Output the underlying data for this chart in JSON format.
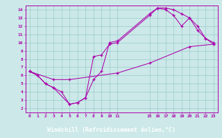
{
  "xlabel": "Windchill (Refroidissement éolien,°C)",
  "bg_color": "#cce8e8",
  "line_color": "#aa00aa",
  "grid_color": "#99cccc",
  "axis_label_bg": "#660066",
  "axis_label_color": "#ffffff",
  "xlim": [
    -0.5,
    23.5
  ],
  "ylim": [
    1.5,
    14.5
  ],
  "xticks": [
    0,
    1,
    2,
    3,
    4,
    5,
    6,
    7,
    8,
    9,
    10,
    11,
    15,
    16,
    17,
    18,
    19,
    20,
    21,
    22,
    23
  ],
  "yticks": [
    2,
    3,
    4,
    5,
    6,
    7,
    8,
    9,
    10,
    11,
    12,
    13,
    14
  ],
  "line1_x": [
    0,
    1,
    2,
    3,
    4,
    5,
    6,
    7,
    8,
    9,
    10,
    11,
    15,
    16,
    17,
    18,
    19,
    20,
    21,
    22,
    23
  ],
  "line1_y": [
    6.5,
    6.0,
    5.0,
    4.5,
    4.0,
    2.5,
    2.7,
    3.3,
    5.5,
    6.5,
    10.0,
    10.2,
    13.5,
    14.2,
    14.2,
    14.0,
    13.5,
    13.0,
    11.5,
    10.5,
    10.0
  ],
  "line2_x": [
    0,
    1,
    2,
    3,
    5,
    6,
    7,
    8,
    9,
    10,
    11,
    15,
    16,
    17,
    18,
    19,
    20,
    21,
    22,
    23
  ],
  "line2_y": [
    6.5,
    6.0,
    5.0,
    4.5,
    2.5,
    2.7,
    3.3,
    8.3,
    8.5,
    9.8,
    10.0,
    13.3,
    14.2,
    14.0,
    13.3,
    12.0,
    13.0,
    12.0,
    10.5,
    9.8
  ],
  "line3_x": [
    0,
    3,
    5,
    11,
    15,
    20,
    23
  ],
  "line3_y": [
    6.5,
    5.5,
    5.5,
    6.3,
    7.5,
    9.5,
    9.8
  ]
}
